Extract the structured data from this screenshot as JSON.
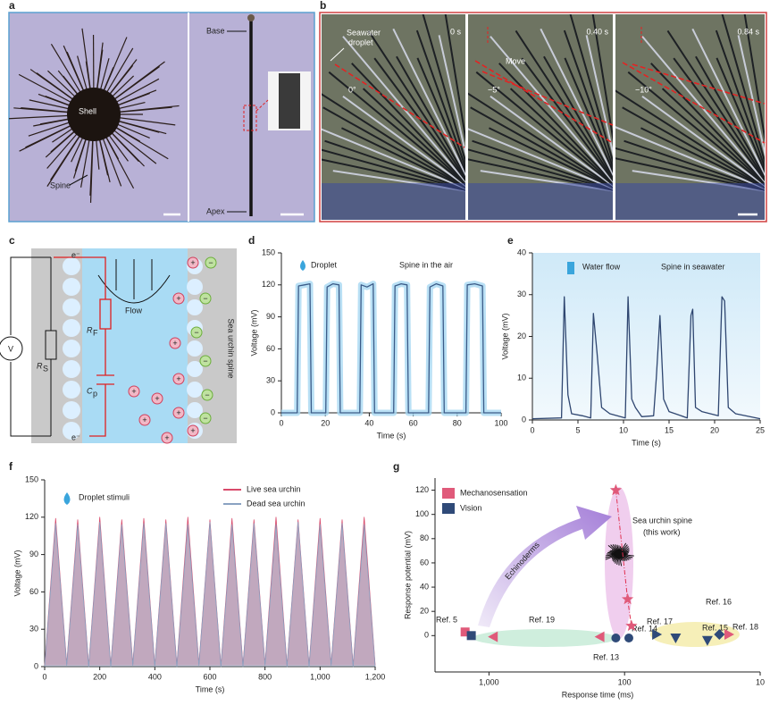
{
  "panel_a": {
    "label": "a",
    "shell": "Shell",
    "spine": "Spine",
    "base": "Base",
    "apex": "Apex"
  },
  "panel_b": {
    "label": "b",
    "droplet": [
      "Seawater",
      "droplet"
    ],
    "times": [
      "0 s",
      "0.40 s",
      "0.84 s"
    ],
    "angles": [
      "0°",
      "−5°",
      "−10°"
    ],
    "move": "Move"
  },
  "panel_c": {
    "label": "c",
    "source": "V",
    "rs": [
      "R",
      "S"
    ],
    "rf": [
      "R",
      "F"
    ],
    "cp": [
      "C",
      "p"
    ],
    "flow": "Flow",
    "spine": "Sea urchin spine",
    "electron": "e⁻",
    "plus": "+",
    "minus": "−"
  },
  "chart_data": [
    {
      "type": "line",
      "panel_label": "d",
      "xlabel": "Time (s)",
      "ylabel": "Voltage (mV)",
      "annotations": [
        "Droplet",
        "Spine in the air"
      ],
      "color": "#3b5b88",
      "x": [
        0,
        7.2,
        7.8,
        10.5,
        13,
        13.6,
        20.2,
        20.8,
        23.5,
        26.2,
        26.8,
        35.7,
        36.3,
        39,
        41.8,
        42.4,
        51.1,
        51.7,
        54.5,
        57.2,
        57.8,
        67,
        67.6,
        70.5,
        73.5,
        74.1,
        84,
        84.6,
        88,
        91.5,
        92.1,
        100
      ],
      "values": [
        0,
        0,
        119,
        120,
        121,
        0,
        0,
        118,
        121,
        120,
        0,
        0,
        120,
        118,
        121,
        0,
        0,
        119,
        121,
        120,
        0,
        0,
        118,
        121,
        119,
        0,
        0,
        120,
        121,
        119,
        0,
        0
      ],
      "xlim": [
        0,
        100
      ],
      "xticks": [
        0,
        20,
        40,
        60,
        80,
        100
      ],
      "ylim": [
        0,
        150
      ],
      "yticks": [
        0,
        30,
        60,
        90,
        120,
        150
      ]
    },
    {
      "type": "line",
      "panel_label": "e",
      "xlabel": "Time (s)",
      "ylabel": "Voltage (mV)",
      "annotations": [
        "Water flow",
        "Spine in seawater"
      ],
      "color": "#2f4670",
      "x": [
        0,
        3.2,
        3.5,
        3.9,
        4.3,
        5.5,
        6.4,
        6.7,
        7.1,
        7.6,
        8.5,
        10.2,
        10.5,
        10.9,
        11.3,
        12,
        13.3,
        13.6,
        14,
        14.4,
        15,
        17,
        17.4,
        17.6,
        17.9,
        18.6,
        20.4,
        20.8,
        21.1,
        21.5,
        22.3,
        25
      ],
      "values": [
        0.3,
        0.5,
        29.5,
        6,
        1.5,
        1,
        0.5,
        25.5,
        16,
        3,
        1.5,
        0.5,
        29.5,
        5,
        3,
        0.8,
        1,
        10,
        25,
        5,
        2,
        0.5,
        25,
        26.5,
        3,
        2,
        1,
        29.5,
        28.5,
        3,
        1.5,
        0.3
      ],
      "xlim": [
        0,
        25
      ],
      "xticks": [
        0,
        5,
        10,
        15,
        20,
        25
      ],
      "ylim": [
        0,
        40
      ],
      "yticks": [
        0,
        10,
        20,
        30,
        40
      ]
    },
    {
      "type": "line",
      "panel_label": "f",
      "xlabel": "Time (s)",
      "ylabel": "Voltage (mV)",
      "annotations": [
        "Droplet stimuli"
      ],
      "legend": "upper right",
      "x": [
        0,
        40,
        80,
        120,
        160,
        200,
        240,
        280,
        320,
        360,
        400,
        440,
        480,
        520,
        560,
        600,
        640,
        680,
        720,
        760,
        800,
        840,
        880,
        920,
        960,
        1000,
        1040,
        1080,
        1120,
        1160,
        1200
      ],
      "series": [
        {
          "name": "Live sea urchin",
          "color": "#d94a6b",
          "values": [
            1,
            119,
            2,
            118,
            1,
            120,
            1,
            118,
            2,
            119,
            1,
            118,
            1,
            120,
            2,
            118,
            1,
            119,
            1,
            118,
            2,
            120,
            1,
            118,
            1,
            119,
            2,
            118,
            1,
            120,
            1
          ]
        },
        {
          "name": "Dead sea urchin",
          "color": "#8aa2c2",
          "values": [
            0,
            115,
            1,
            114,
            0,
            116,
            0,
            114,
            1,
            115,
            0,
            115,
            0,
            114,
            1,
            116,
            0,
            114,
            0,
            115,
            1,
            114,
            0,
            116,
            0,
            114,
            1,
            115,
            0,
            114,
            0
          ]
        }
      ],
      "xlim": [
        0,
        1200
      ],
      "xticks": [
        0,
        200,
        400,
        600,
        800,
        {
          "value": 1000,
          "label": "1,000"
        },
        {
          "value": 1200,
          "label": "1,200"
        }
      ],
      "ylim": [
        0,
        150
      ],
      "yticks": [
        0,
        30,
        60,
        90,
        120,
        150
      ]
    },
    {
      "type": "scatter",
      "panel_label": "g",
      "xlabel": "Response time (ms)",
      "ylabel": "Response potential (mV)",
      "xlog": true,
      "legend": "upper left",
      "annotations": [
        "Ref. 5",
        "Ref. 19",
        "Ref. 13",
        "Ref. 14",
        "Ref. 17",
        "Ref. 16",
        "Ref. 15",
        "Ref. 18",
        "Echinoderms",
        "Sea urchin spine",
        "(this work)"
      ],
      "series": [
        {
          "name": "Mechanosensation",
          "color": "#e05a7a",
          "x": [
            116,
            95,
            89,
            1500,
            930,
            152,
            17
          ],
          "values": [
            120,
            30,
            8,
            3,
            -1,
            -1,
            1
          ],
          "markers": [
            "star",
            "star",
            "star",
            "square",
            "triangle-left",
            "triangle-left",
            "triangle-right"
          ]
        },
        {
          "name": "Vision",
          "color": "#2f4a78",
          "x": [
            1350,
            116,
            93,
            42,
            58,
            20,
            24.5
          ],
          "values": [
            0,
            -2,
            -2,
            -2,
            1,
            1,
            -4
          ],
          "markers": [
            "square",
            "circle",
            "circle",
            "triangle-down",
            "triangle-right",
            "diamond",
            "triangle-down"
          ]
        }
      ],
      "xlim": [
        2500,
        10
      ],
      "xticks": [
        {
          "value": 1000,
          "label": "1,000"
        },
        100,
        10
      ],
      "ylim": [
        -30,
        130
      ],
      "yticks": [
        0,
        20,
        40,
        60,
        80,
        100,
        120
      ]
    }
  ]
}
